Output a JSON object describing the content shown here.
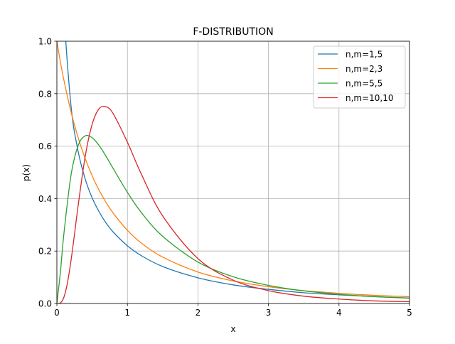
{
  "chart_data": {
    "type": "line",
    "title": "F-DISTRIBUTION",
    "xlabel": "x",
    "ylabel": "p(x)",
    "xlim": [
      0,
      5
    ],
    "ylim": [
      0,
      1
    ],
    "xticks": [
      "0",
      "1",
      "2",
      "3",
      "4",
      "5"
    ],
    "yticks": [
      "0.0",
      "0.2",
      "0.4",
      "0.6",
      "0.8",
      "1.0"
    ],
    "grid": true,
    "legend_position": "top-right",
    "series": [
      {
        "name": "n,m=1,5",
        "color": "#1f77b4",
        "x": [
          0.1,
          0.2,
          0.3,
          0.4,
          0.5,
          0.6,
          0.7,
          0.8,
          1,
          1.2,
          1.5,
          2,
          2.5,
          3,
          3.5,
          4,
          4.5,
          5
        ],
        "y": [
          1.131,
          0.755,
          0.582,
          0.476,
          0.403,
          0.349,
          0.306,
          0.272,
          0.22,
          0.182,
          0.141,
          0.098,
          0.071,
          0.054,
          0.041,
          0.033,
          0.026,
          0.021
        ]
      },
      {
        "name": "n,m=2,3",
        "color": "#ff7f0e",
        "x": [
          0,
          0.05,
          0.1,
          0.2,
          0.3,
          0.4,
          0.5,
          0.6,
          0.7,
          0.8,
          1,
          1.2,
          1.5,
          2,
          2.5,
          3,
          3.5,
          4,
          4.5,
          5
        ],
        "y": [
          1.0,
          0.921,
          0.851,
          0.731,
          0.634,
          0.554,
          0.487,
          0.431,
          0.384,
          0.344,
          0.279,
          0.23,
          0.177,
          0.12,
          0.086,
          0.064,
          0.049,
          0.039,
          0.031,
          0.026
        ]
      },
      {
        "name": "n,m=5,5",
        "color": "#2ca02c",
        "x": [
          0,
          0.05,
          0.1,
          0.2,
          0.3,
          0.4,
          0.5,
          0.6,
          0.7,
          0.8,
          1,
          1.2,
          1.5,
          2,
          2.5,
          3,
          3.5,
          4,
          4.5,
          5
        ],
        "y": [
          0,
          0.119,
          0.267,
          0.488,
          0.601,
          0.639,
          0.632,
          0.602,
          0.56,
          0.514,
          0.424,
          0.346,
          0.256,
          0.158,
          0.102,
          0.069,
          0.048,
          0.035,
          0.026,
          0.02
        ]
      },
      {
        "name": "n,m=10,10",
        "color": "#d62728",
        "x": [
          0,
          0.05,
          0.1,
          0.15,
          0.2,
          0.25,
          0.3,
          0.4,
          0.5,
          0.6,
          0.7,
          0.8,
          1,
          1.2,
          1.5,
          2,
          2.5,
          3,
          3.5,
          4,
          4.5,
          5
        ],
        "y": [
          0,
          0.002,
          0.024,
          0.079,
          0.163,
          0.264,
          0.37,
          0.558,
          0.683,
          0.743,
          0.75,
          0.723,
          0.615,
          0.492,
          0.334,
          0.171,
          0.089,
          0.049,
          0.028,
          0.017,
          0.01,
          0.007
        ]
      }
    ]
  }
}
